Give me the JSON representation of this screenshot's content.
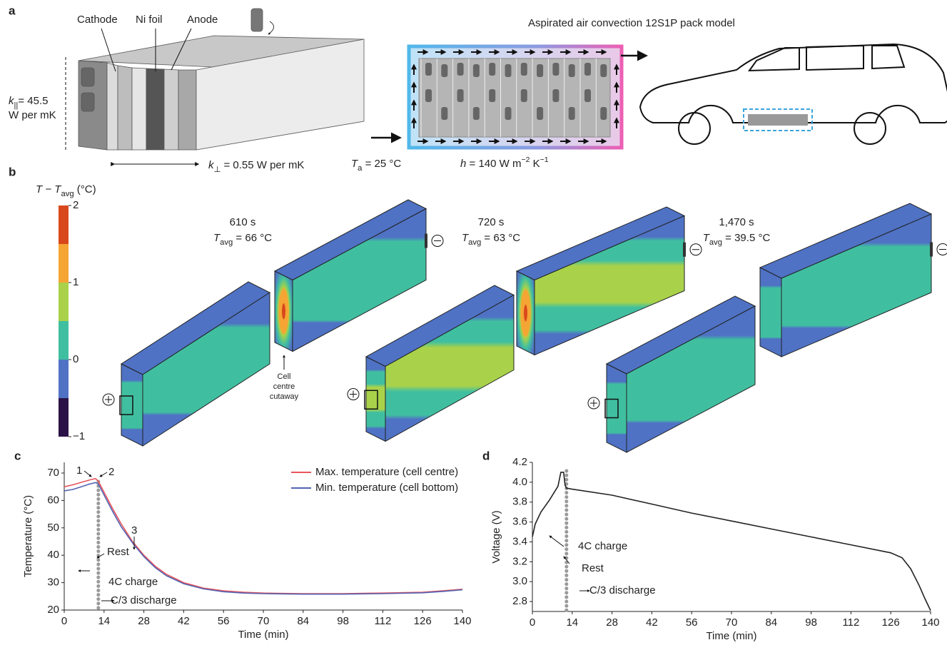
{
  "panel_a": {
    "label": "a",
    "layer_labels": [
      "Cathode",
      "Ni foil",
      "Anode"
    ],
    "k_parallel": {
      "symbol": "k",
      "subscript": "||",
      "text": "= 45.5",
      "unit": "W per mK"
    },
    "k_perp": {
      "symbol": "k",
      "subscript": "⊥",
      "text": " = 0.55 W per mK"
    },
    "pack_title": "Aspirated air convection 12S1P pack model",
    "ambient": {
      "symbol": "T",
      "subscript": "a",
      "text": " = 25 °C"
    },
    "h_coeff": {
      "symbol": "h",
      "text": " = 140 W m",
      "sup1": "−2",
      "mid": " K",
      "sup2": "−1"
    }
  },
  "panel_b": {
    "label": "b",
    "colorbar": {
      "title_symbol": "T",
      "title_minus": " − T",
      "title_sub": "avg",
      "title_unit": " (°C)",
      "lim": [
        -1,
        2
      ],
      "ticks": [
        2,
        1,
        0,
        {
          "value": -1,
          "label": "−1"
        }
      ],
      "levels": [
        -1,
        -0.5,
        0,
        0.5,
        1,
        1.5,
        2
      ],
      "colors": [
        "#2b1246",
        "#4f72c4",
        "#40bfa0",
        "#a9d24a",
        "#f4a534",
        "#d9481c"
      ]
    },
    "snapshots": [
      {
        "time": "610 s",
        "symbol": "T",
        "subscript": "avg",
        "text": " = 66 °C"
      },
      {
        "time": "720 s",
        "symbol": "T",
        "subscript": "avg",
        "text": " = 63 °C"
      },
      {
        "time": "1,470 s",
        "symbol": "T",
        "subscript": "avg",
        "text": " = 39.5 °C"
      }
    ],
    "cutaway_label": [
      "Cell",
      "centre",
      "cutaway"
    ]
  },
  "chart_data": [
    {
      "type": "line",
      "label": "c",
      "x_label": "Time (min)",
      "y_label": "Temperature (°C)",
      "xlim": [
        0,
        140
      ],
      "xticks": [
        0,
        14,
        28,
        42,
        56,
        70,
        84,
        98,
        112,
        126,
        140
      ],
      "ylim": [
        20,
        73.9
      ],
      "yticks": [
        20,
        30,
        40,
        50,
        60,
        70
      ],
      "x": [
        0,
        3,
        6,
        9,
        11,
        12,
        14,
        17,
        20,
        24,
        28,
        32,
        36,
        42,
        49,
        56,
        63,
        70,
        84,
        98,
        112,
        126,
        133,
        140
      ],
      "series": [
        {
          "name": "Max. temperature (cell centre)",
          "color": "#e8545c",
          "values": [
            65,
            65.7,
            66.6,
            67.5,
            68,
            67,
            63,
            57,
            51.5,
            45,
            40,
            36,
            33,
            30,
            28,
            27,
            26.5,
            26.2,
            26,
            26,
            26.2,
            26.5,
            27,
            27.6
          ]
        },
        {
          "name": "Min. temperature (cell bottom)",
          "color": "#5363b2",
          "values": [
            63.5,
            64,
            65,
            66,
            66.5,
            66,
            62,
            56,
            50.5,
            44.5,
            39.5,
            35.5,
            32.5,
            29.6,
            27.7,
            26.7,
            26.2,
            26,
            25.8,
            25.8,
            26,
            26.3,
            26.8,
            27.4
          ]
        }
      ],
      "event_x": 12,
      "annotations": [
        "1",
        "2",
        "3",
        "Rest",
        "4C charge",
        "C/3 discharge"
      ]
    },
    {
      "type": "line",
      "label": "d",
      "x_label": "Time (min)",
      "y_label": "Voltage (V)",
      "xlim": [
        0,
        140
      ],
      "xticks": [
        0,
        14,
        28,
        42,
        56,
        70,
        84,
        98,
        112,
        126,
        140
      ],
      "ylim": [
        2.7,
        4.2
      ],
      "yticks": [
        2.8,
        {
          "value": 3,
          "label": "3.0"
        },
        3.2,
        3.4,
        3.6,
        3.8,
        {
          "value": 4,
          "label": "4.0"
        },
        4.2
      ],
      "x": [
        0,
        1,
        3,
        6,
        9,
        10,
        11,
        11.5,
        12,
        14,
        28,
        42,
        56,
        70,
        84,
        98,
        112,
        126,
        130,
        133,
        136,
        138,
        140
      ],
      "color": "#222222",
      "values": [
        3.45,
        3.58,
        3.7,
        3.82,
        3.96,
        4.1,
        4.1,
        3.97,
        3.94,
        3.93,
        3.87,
        3.78,
        3.69,
        3.61,
        3.53,
        3.45,
        3.37,
        3.29,
        3.24,
        3.13,
        2.96,
        2.83,
        2.71
      ],
      "event_x": 12,
      "annotations": [
        "4C charge",
        "Rest",
        "C/3 discharge"
      ]
    }
  ]
}
